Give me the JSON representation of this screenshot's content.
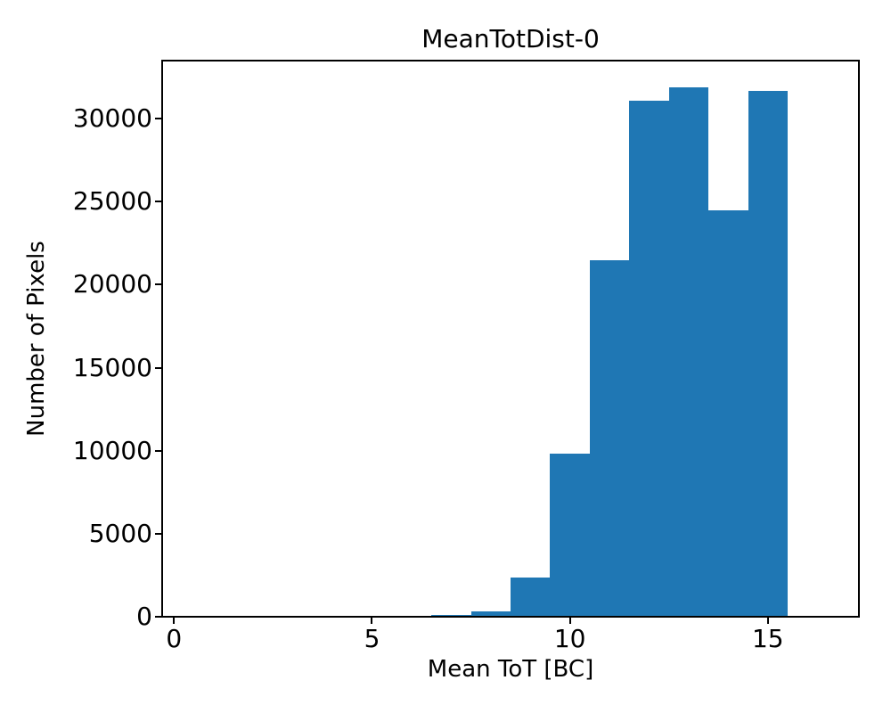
{
  "figure": {
    "background": "#ffffff",
    "text_color": "#000000"
  },
  "chart_data": {
    "type": "bar",
    "subtype": "histogram",
    "title": "MeanTotDist-0",
    "xlabel": "Mean ToT [BC]",
    "ylabel": "Number of Pixels",
    "bar_color": "#1f77b4",
    "grid": false,
    "legend": null,
    "bin_edges": [
      6.5,
      7.5,
      8.5,
      9.5,
      10.5,
      11.5,
      12.5,
      13.5,
      14.5,
      15.5
    ],
    "counts": [
      110,
      330,
      2380,
      9800,
      21500,
      31100,
      31900,
      24500,
      31650
    ],
    "xlim": [
      -0.3,
      17.3
    ],
    "ylim": [
      0,
      33500
    ],
    "xticks": [
      {
        "value": 0,
        "label": "0"
      },
      {
        "value": 5,
        "label": "5"
      },
      {
        "value": 10,
        "label": "10"
      },
      {
        "value": 15,
        "label": "15"
      }
    ],
    "yticks": [
      {
        "value": 0,
        "label": "0"
      },
      {
        "value": 5000,
        "label": "5000"
      },
      {
        "value": 10000,
        "label": "10000"
      },
      {
        "value": 15000,
        "label": "15000"
      },
      {
        "value": 20000,
        "label": "20000"
      },
      {
        "value": 25000,
        "label": "25000"
      },
      {
        "value": 30000,
        "label": "30000"
      }
    ]
  }
}
